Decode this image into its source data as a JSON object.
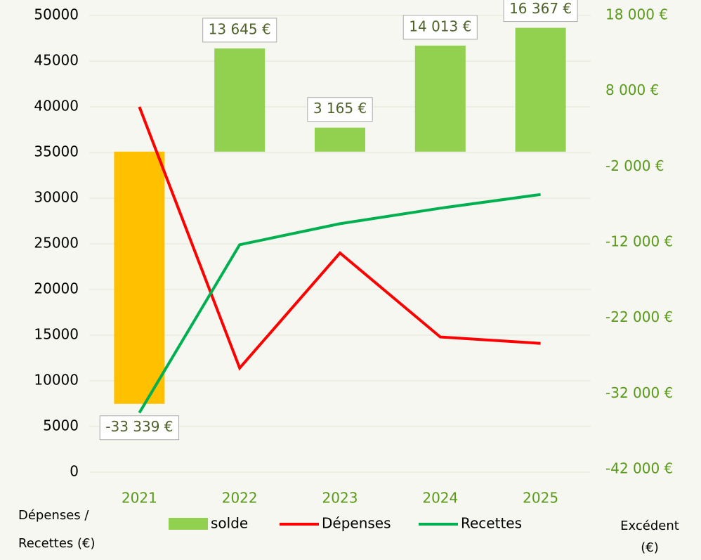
{
  "chart_data": {
    "type": "bar-line",
    "categories": [
      "2021",
      "2022",
      "2023",
      "2024",
      "2025"
    ],
    "series": [
      {
        "name": "solde",
        "type": "bar",
        "axis": "y2",
        "color": "#92d050",
        "negative_color": "#ffc000",
        "values": [
          -33339,
          13645,
          3165,
          14013,
          16367
        ],
        "value_labels": [
          "-33 339 €",
          "13 645 €",
          "3 165 €",
          "14 013 €",
          "16 367 €"
        ]
      },
      {
        "name": "Dépenses",
        "type": "line",
        "color": "#ff0000",
        "values": [
          40000,
          11400,
          24000,
          14800,
          14100
        ]
      },
      {
        "name": "Recettes",
        "type": "line",
        "color": "#00b050",
        "values": [
          6500,
          24900,
          27200,
          28900,
          30400
        ]
      }
    ],
    "y_label": [
      "Dépenses /",
      "Recettes (€)"
    ],
    "y2_label": [
      "Excédent",
      "(€)"
    ],
    "ylim": [
      0,
      50000
    ],
    "yticks": [
      0,
      5000,
      10000,
      15000,
      20000,
      25000,
      30000,
      35000,
      40000,
      45000,
      50000
    ],
    "y2lim": [
      -42000,
      18000
    ],
    "y2ticks": [
      {
        "value": -42000,
        "label": "-42 000 €"
      },
      {
        "value": -32000,
        "label": "-32 000 €"
      },
      {
        "value": -22000,
        "label": "-22 000 €"
      },
      {
        "value": -12000,
        "label": "-12 000 €"
      },
      {
        "value": -2000,
        "label": "-2 000 €"
      },
      {
        "value": 8000,
        "label": "8 000 €"
      },
      {
        "value": 18000,
        "label": "18 000 €"
      }
    ],
    "grid": true
  }
}
